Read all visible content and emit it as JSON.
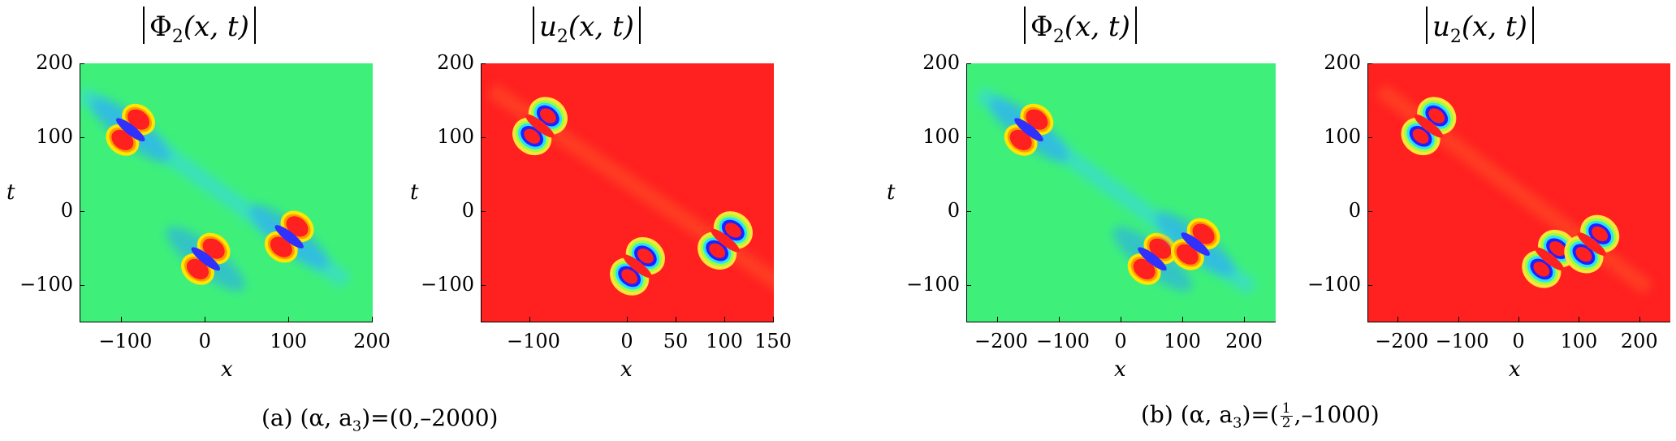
{
  "chart_data": [
    {
      "type": "heatmap",
      "title_fn": "Φ",
      "title_sub": "2",
      "title_args": "(x, t)",
      "xlabel": "x",
      "ylabel": "t",
      "xlim": [
        -150,
        200
      ],
      "ylim": [
        -150,
        200
      ],
      "xticks": [
        -100,
        0,
        100,
        200
      ],
      "yticks": [
        -100,
        0,
        100,
        200
      ],
      "background": "green",
      "lumps": [
        {
          "x": -90,
          "t": 110
        },
        {
          "x": 0,
          "t": -65
        },
        {
          "x": 100,
          "t": -35
        }
      ]
    },
    {
      "type": "heatmap",
      "title_fn": "u",
      "title_sub": "2",
      "title_args": "(x, t)",
      "xlabel": "x",
      "ylabel": "t",
      "xlim": [
        -150,
        150
      ],
      "ylim": [
        -150,
        200
      ],
      "xticks": [
        -100,
        0,
        50,
        100,
        150
      ],
      "yticks": [
        -100,
        0,
        100,
        200
      ],
      "background": "red",
      "lumps": [
        {
          "x": -90,
          "t": 115
        },
        {
          "x": 10,
          "t": -75
        },
        {
          "x": 100,
          "t": -40
        }
      ]
    },
    {
      "type": "heatmap",
      "title_fn": "Φ",
      "title_sub": "2",
      "title_args": "(x, t)",
      "xlabel": "x",
      "ylabel": "t",
      "xlim": [
        -250,
        250
      ],
      "ylim": [
        -150,
        200
      ],
      "xticks": [
        -200,
        -100,
        0,
        100,
        200
      ],
      "yticks": [
        -100,
        0,
        100,
        200
      ],
      "background": "green",
      "lumps": [
        {
          "x": -150,
          "t": 110
        },
        {
          "x": 50,
          "t": -65
        },
        {
          "x": 120,
          "t": -45
        }
      ]
    },
    {
      "type": "heatmap",
      "title_fn": "u",
      "title_sub": "2",
      "title_args": "(x, t)",
      "xlabel": "x",
      "ylabel": "t",
      "xlim": [
        -250,
        250
      ],
      "ylim": [
        -150,
        200
      ],
      "xticks": [
        -200,
        -100,
        0,
        100,
        200
      ],
      "yticks": [
        -100,
        0,
        100,
        200
      ],
      "background": "red",
      "lumps": [
        {
          "x": -150,
          "t": 115
        },
        {
          "x": 50,
          "t": -65
        },
        {
          "x": 120,
          "t": -45
        }
      ]
    }
  ],
  "captions": {
    "a": {
      "label": "(a)",
      "params": "(α, a",
      "params_sub": "3",
      "equals": ")=(0,–2000)"
    },
    "b": {
      "label": "(b)",
      "params": "(α, a",
      "params_sub": "3",
      "equals": ")=(",
      "frac_num": "1",
      "frac_den": "2",
      "tail": ",–1000)"
    }
  },
  "colors": {
    "green": "#3ef07a",
    "red": "#ff2020",
    "blue": "#2020ff"
  }
}
